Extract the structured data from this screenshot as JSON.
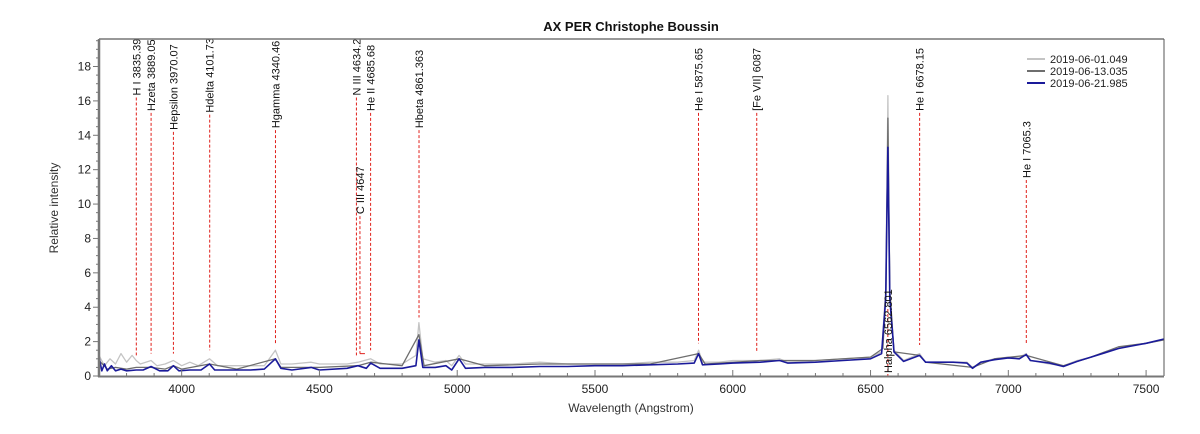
{
  "chart_data": {
    "type": "line",
    "title": "AX PER  Christophe Boussin",
    "xlabel": "Wavelength (Angstrom)",
    "ylabel": "Relative intensity",
    "xlim": [
      3700,
      7565
    ],
    "ylim": [
      0,
      19.6
    ],
    "xticks": [
      4000,
      4500,
      5000,
      5500,
      6000,
      6500,
      7000,
      7500
    ],
    "yticks": [
      0,
      2,
      4,
      6,
      8,
      10,
      12,
      14,
      16,
      18
    ],
    "grid": false,
    "legend_position": "upper right",
    "series": [
      {
        "name": "2019-06-01.049",
        "color": "#c4c4c4",
        "points": [
          [
            3700,
            1.2
          ],
          [
            3720,
            0.6
          ],
          [
            3740,
            1.0
          ],
          [
            3760,
            0.7
          ],
          [
            3780,
            1.3
          ],
          [
            3800,
            0.8
          ],
          [
            3820,
            1.2
          ],
          [
            3835,
            0.9
          ],
          [
            3850,
            0.7
          ],
          [
            3870,
            0.8
          ],
          [
            3889,
            0.9
          ],
          [
            3910,
            0.6
          ],
          [
            3940,
            0.7
          ],
          [
            3970,
            0.9
          ],
          [
            4000,
            0.6
          ],
          [
            4030,
            0.8
          ],
          [
            4060,
            0.6
          ],
          [
            4101,
            1.0
          ],
          [
            4130,
            0.6
          ],
          [
            4200,
            0.6
          ],
          [
            4250,
            0.6
          ],
          [
            4300,
            0.6
          ],
          [
            4340,
            1.5
          ],
          [
            4360,
            0.7
          ],
          [
            4400,
            0.7
          ],
          [
            4470,
            0.8
          ],
          [
            4500,
            0.7
          ],
          [
            4600,
            0.7
          ],
          [
            4640,
            0.8
          ],
          [
            4686,
            1.0
          ],
          [
            4720,
            0.7
          ],
          [
            4800,
            0.7
          ],
          [
            4850,
            1.2
          ],
          [
            4861,
            3.1
          ],
          [
            4875,
            1.0
          ],
          [
            4920,
            0.8
          ],
          [
            4959,
            0.9
          ],
          [
            4980,
            0.6
          ],
          [
            5007,
            1.2
          ],
          [
            5030,
            0.7
          ],
          [
            5100,
            0.7
          ],
          [
            5200,
            0.7
          ],
          [
            5300,
            0.8
          ],
          [
            5400,
            0.7
          ],
          [
            5500,
            0.7
          ],
          [
            5600,
            0.7
          ],
          [
            5700,
            0.8
          ],
          [
            5800,
            0.8
          ],
          [
            5860,
            0.9
          ],
          [
            5876,
            1.5
          ],
          [
            5890,
            0.8
          ],
          [
            5950,
            0.8
          ],
          [
            6000,
            0.9
          ],
          [
            6100,
            0.9
          ],
          [
            6170,
            1.0
          ],
          [
            6200,
            0.8
          ],
          [
            6300,
            0.9
          ],
          [
            6400,
            1.0
          ],
          [
            6500,
            1.1
          ],
          [
            6540,
            1.4
          ],
          [
            6555,
            5.0
          ],
          [
            6563,
            16.3
          ],
          [
            6570,
            5.0
          ],
          [
            6585,
            1.5
          ],
          [
            6620,
            0.9
          ],
          [
            6678,
            1.3
          ],
          [
            6700,
            0.8
          ],
          [
            6800,
            0.8
          ],
          [
            6850,
            0.8
          ],
          [
            6870,
            0.5
          ],
          [
            6900,
            0.8
          ],
          [
            6950,
            1.0
          ],
          [
            7000,
            1.1
          ],
          [
            7040,
            1.1
          ],
          [
            7065,
            1.3
          ],
          [
            7080,
            0.9
          ],
          [
            7150,
            0.7
          ],
          [
            7200,
            0.6
          ],
          [
            7250,
            0.9
          ],
          [
            7300,
            1.1
          ],
          [
            7350,
            1.4
          ],
          [
            7400,
            1.6
          ],
          [
            7450,
            1.8
          ],
          [
            7500,
            1.9
          ],
          [
            7565,
            2.1
          ]
        ]
      },
      {
        "name": "2019-06-13.035",
        "color": "#6e6e6e",
        "points": [
          [
            3700,
            0.9
          ],
          [
            3730,
            0.4
          ],
          [
            3760,
            0.5
          ],
          [
            3800,
            0.4
          ],
          [
            3835,
            0.5
          ],
          [
            3889,
            0.5
          ],
          [
            3940,
            0.4
          ],
          [
            3970,
            0.6
          ],
          [
            4000,
            0.4
          ],
          [
            4101,
            0.7
          ],
          [
            4200,
            0.4
          ],
          [
            4340,
            1.0
          ],
          [
            4360,
            0.5
          ],
          [
            4500,
            0.5
          ],
          [
            4640,
            0.6
          ],
          [
            4686,
            0.8
          ],
          [
            4800,
            0.6
          ],
          [
            4861,
            2.4
          ],
          [
            4880,
            0.6
          ],
          [
            5007,
            1.0
          ],
          [
            5100,
            0.6
          ],
          [
            5300,
            0.7
          ],
          [
            5500,
            0.7
          ],
          [
            5700,
            0.7
          ],
          [
            5876,
            1.3
          ],
          [
            5900,
            0.7
          ],
          [
            6100,
            0.9
          ],
          [
            6300,
            0.9
          ],
          [
            6500,
            1.1
          ],
          [
            6545,
            1.6
          ],
          [
            6556,
            5.0
          ],
          [
            6563,
            15.0
          ],
          [
            6570,
            5.0
          ],
          [
            6585,
            1.4
          ],
          [
            6678,
            1.2
          ],
          [
            6700,
            0.8
          ],
          [
            6870,
            0.5
          ],
          [
            6950,
            1.0
          ],
          [
            7065,
            1.2
          ],
          [
            7200,
            0.6
          ],
          [
            7300,
            1.1
          ],
          [
            7400,
            1.7
          ],
          [
            7500,
            1.9
          ],
          [
            7565,
            2.1
          ]
        ]
      },
      {
        "name": "2019-06-21.985",
        "color": "#1a1a9a",
        "points": [
          [
            3700,
            1.1
          ],
          [
            3710,
            0.3
          ],
          [
            3720,
            0.7
          ],
          [
            3730,
            0.3
          ],
          [
            3745,
            0.6
          ],
          [
            3760,
            0.3
          ],
          [
            3780,
            0.4
          ],
          [
            3800,
            0.3
          ],
          [
            3835,
            0.35
          ],
          [
            3860,
            0.35
          ],
          [
            3889,
            0.55
          ],
          [
            3920,
            0.3
          ],
          [
            3950,
            0.3
          ],
          [
            3970,
            0.6
          ],
          [
            3990,
            0.3
          ],
          [
            4030,
            0.35
          ],
          [
            4070,
            0.35
          ],
          [
            4101,
            0.7
          ],
          [
            4120,
            0.35
          ],
          [
            4200,
            0.35
          ],
          [
            4250,
            0.35
          ],
          [
            4300,
            0.4
          ],
          [
            4340,
            1.0
          ],
          [
            4360,
            0.45
          ],
          [
            4400,
            0.35
          ],
          [
            4470,
            0.5
          ],
          [
            4500,
            0.35
          ],
          [
            4600,
            0.45
          ],
          [
            4640,
            0.6
          ],
          [
            4670,
            0.45
          ],
          [
            4686,
            0.75
          ],
          [
            4720,
            0.45
          ],
          [
            4800,
            0.45
          ],
          [
            4850,
            0.6
          ],
          [
            4861,
            2.1
          ],
          [
            4875,
            0.5
          ],
          [
            4920,
            0.5
          ],
          [
            4959,
            0.6
          ],
          [
            4980,
            0.35
          ],
          [
            5007,
            1.0
          ],
          [
            5030,
            0.45
          ],
          [
            5100,
            0.5
          ],
          [
            5200,
            0.5
          ],
          [
            5300,
            0.55
          ],
          [
            5400,
            0.55
          ],
          [
            5500,
            0.6
          ],
          [
            5600,
            0.6
          ],
          [
            5700,
            0.65
          ],
          [
            5800,
            0.7
          ],
          [
            5860,
            0.75
          ],
          [
            5876,
            1.3
          ],
          [
            5890,
            0.65
          ],
          [
            5950,
            0.7
          ],
          [
            6000,
            0.75
          ],
          [
            6100,
            0.8
          ],
          [
            6170,
            0.9
          ],
          [
            6200,
            0.75
          ],
          [
            6300,
            0.8
          ],
          [
            6400,
            0.9
          ],
          [
            6500,
            1.0
          ],
          [
            6540,
            1.3
          ],
          [
            6555,
            4.5
          ],
          [
            6563,
            13.3
          ],
          [
            6570,
            4.5
          ],
          [
            6585,
            1.4
          ],
          [
            6620,
            0.85
          ],
          [
            6678,
            1.2
          ],
          [
            6700,
            0.8
          ],
          [
            6800,
            0.8
          ],
          [
            6850,
            0.75
          ],
          [
            6870,
            0.45
          ],
          [
            6900,
            0.8
          ],
          [
            6950,
            0.95
          ],
          [
            7000,
            1.05
          ],
          [
            7040,
            1.0
          ],
          [
            7065,
            1.25
          ],
          [
            7080,
            0.9
          ],
          [
            7150,
            0.75
          ],
          [
            7200,
            0.55
          ],
          [
            7250,
            0.85
          ],
          [
            7300,
            1.1
          ],
          [
            7350,
            1.35
          ],
          [
            7400,
            1.6
          ],
          [
            7450,
            1.75
          ],
          [
            7500,
            1.9
          ],
          [
            7565,
            2.15
          ]
        ]
      }
    ],
    "markers": [
      {
        "label": "H I 3835.39",
        "x": 3835.39,
        "top": 16.2,
        "bottom": 1.2
      },
      {
        "label": "Hzeta 3889.05",
        "x": 3889.05,
        "top": 15.3,
        "bottom": 1.3
      },
      {
        "label": "Hepsilon 3970.07",
        "x": 3970.07,
        "top": 14.2,
        "bottom": 1.3
      },
      {
        "label": "Hdelta 4101.73",
        "x": 4101.73,
        "top": 15.2,
        "bottom": 1.5
      },
      {
        "label": "Hgamma 4340.46",
        "x": 4340.46,
        "top": 14.3,
        "bottom": 1.9
      },
      {
        "label": "N III 4634.2",
        "x": 4634.2,
        "top": 16.2,
        "bottom": 1.2
      },
      {
        "label": "C III 4647",
        "x": 4647,
        "top": 9.3,
        "bottom": 1.3
      },
      {
        "label": "He II 4685.68",
        "x": 4685.68,
        "top": 15.3,
        "bottom": 1.5
      },
      {
        "label": "Hbeta 4861.363",
        "x": 4861.363,
        "top": 14.3,
        "bottom": 3.4
      },
      {
        "label": "He I 5875.65",
        "x": 5875.65,
        "top": 15.3,
        "bottom": 1.9
      },
      {
        "label": "[Fe VII] 6087",
        "x": 6087,
        "top": 15.3,
        "bottom": 1.4
      },
      {
        "label": "Halpha 6562.801",
        "x": 6562.801,
        "top": 3.9,
        "bottom": 0.0,
        "label_position": "bottom"
      },
      {
        "label": "He I 6678.15",
        "x": 6678.15,
        "top": 15.3,
        "bottom": 1.8
      },
      {
        "label": "He I 7065.3",
        "x": 7065.3,
        "top": 11.4,
        "bottom": 1.8
      }
    ]
  }
}
